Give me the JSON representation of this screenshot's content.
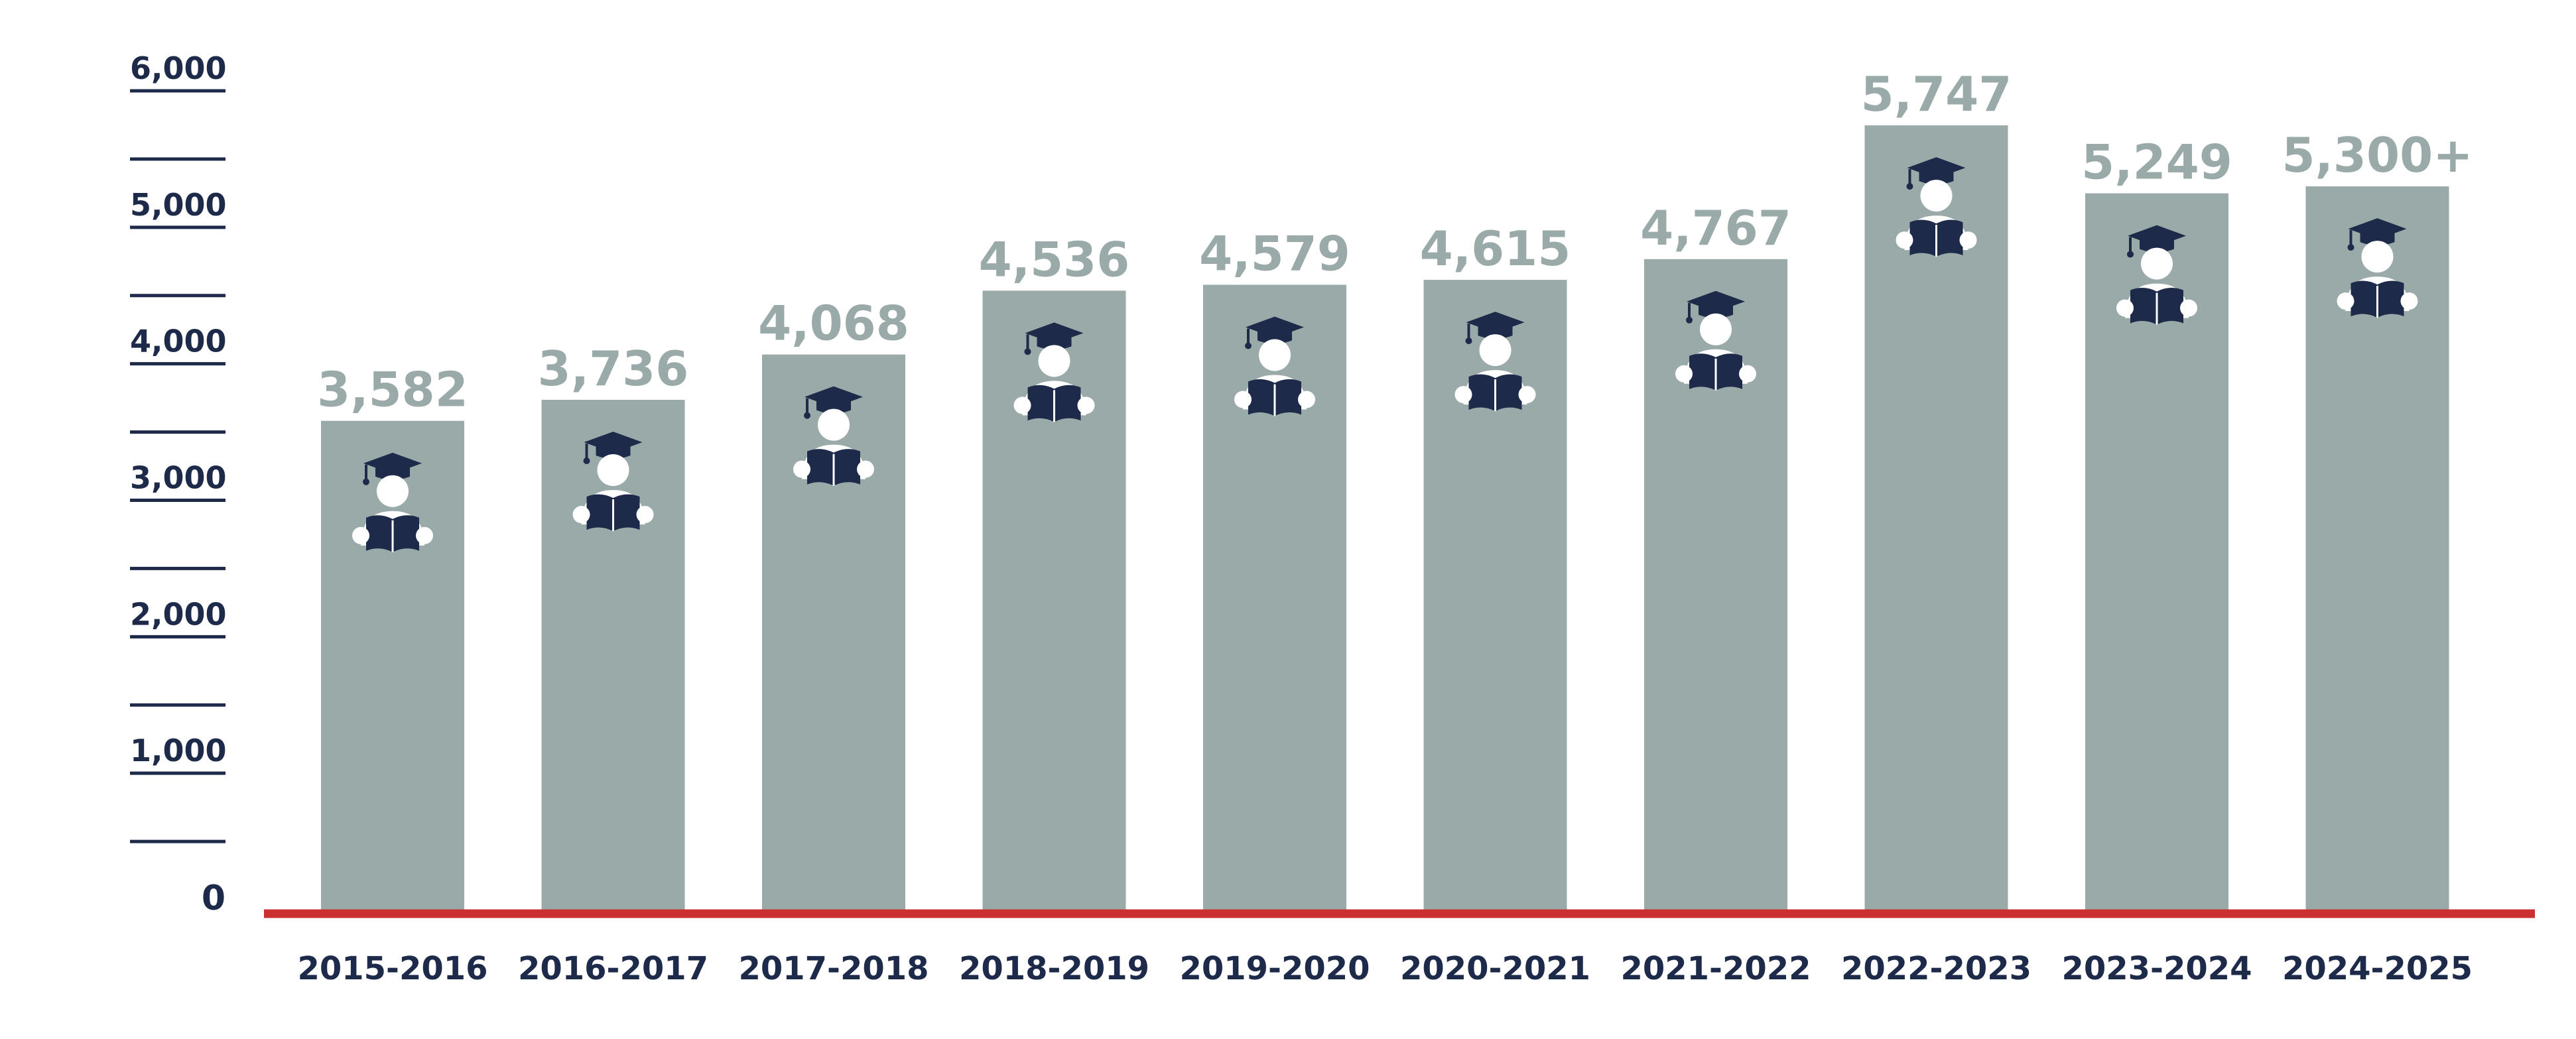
{
  "chart_data": {
    "type": "bar",
    "categories": [
      "2015-2016",
      "2016-2017",
      "2017-2018",
      "2018-2019",
      "2019-2020",
      "2020-2021",
      "2021-2022",
      "2022-2023",
      "2023-2024",
      "2024-2025"
    ],
    "values": [
      3582,
      3736,
      4068,
      4536,
      4579,
      4615,
      4767,
      5747,
      5249,
      5300
    ],
    "value_labels": [
      "3,582",
      "3,736",
      "4,068",
      "4,536",
      "4,579",
      "4,615",
      "4,767",
      "5,747",
      "5,249",
      "5,300+"
    ],
    "ytick_labels": [
      "0",
      "1,000",
      "2,000",
      "3,000",
      "4,000",
      "5,000",
      "6,000"
    ],
    "ytick_values": [
      0,
      1000,
      2000,
      3000,
      4000,
      5000,
      6000
    ],
    "ylim": [
      0,
      6250
    ],
    "title": "",
    "xlabel": "",
    "ylabel": "",
    "grid": false,
    "legend": "none",
    "icon": "graduate-reading-icon",
    "colors": {
      "bar": "#9aaaa8",
      "value_label": "#9aaaa8",
      "axis_text": "#1e2a4a",
      "baseline": "#cc2f2f",
      "icon": "#1e2a4a",
      "icon_face": "#ffffff"
    }
  }
}
